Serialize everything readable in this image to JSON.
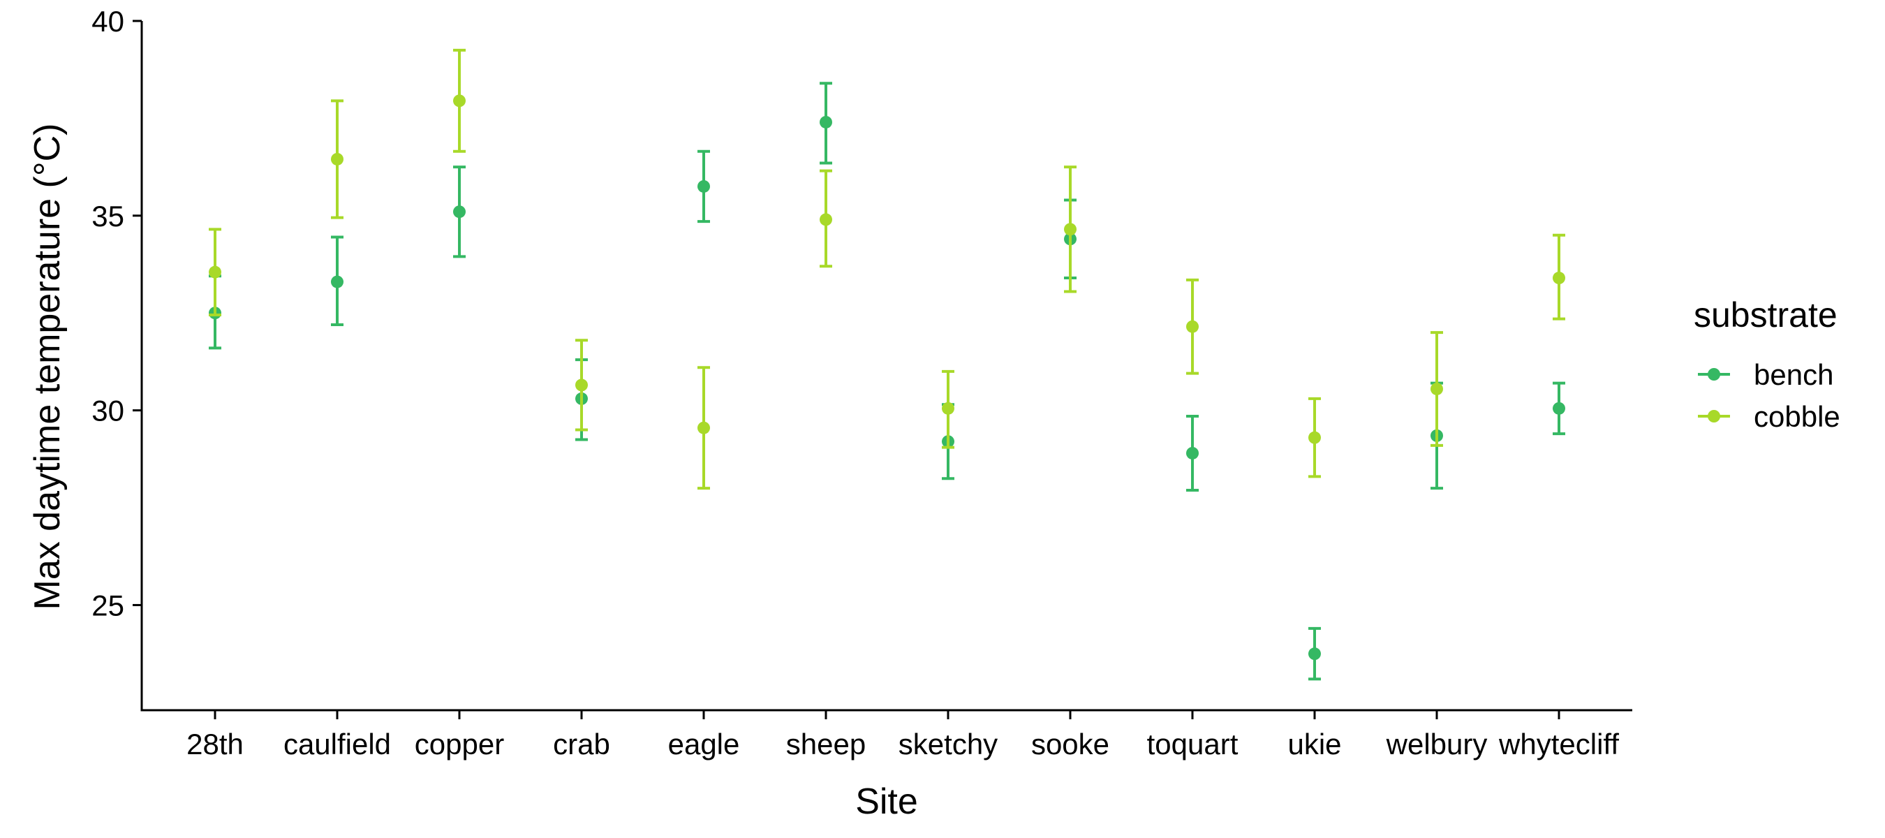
{
  "chart_data": {
    "type": "scatter",
    "xlabel": "Site",
    "ylabel": "Max daytime temperature (°C)",
    "categories": [
      "28th",
      "caulfield",
      "copper",
      "crab",
      "eagle",
      "sheep",
      "sketchy",
      "sooke",
      "toquart",
      "ukie",
      "welbury",
      "whytecliff"
    ],
    "ylim": [
      22.3,
      40
    ],
    "yticks": [
      25,
      30,
      35,
      40
    ],
    "grid": false,
    "legend_title": "substrate",
    "legend_position": "right",
    "error_bars": true,
    "series": [
      {
        "name": "bench",
        "color": "#35b863",
        "values": [
          32.5,
          33.3,
          35.1,
          30.3,
          35.75,
          37.4,
          29.2,
          34.4,
          28.9,
          23.75,
          29.35,
          30.05
        ],
        "lower": [
          31.6,
          32.2,
          33.95,
          29.25,
          34.85,
          36.35,
          28.25,
          33.4,
          27.95,
          23.1,
          28.0,
          29.4
        ],
        "upper": [
          33.45,
          34.45,
          36.25,
          31.3,
          36.65,
          38.4,
          30.15,
          35.4,
          29.85,
          24.4,
          30.7,
          30.7
        ]
      },
      {
        "name": "cobble",
        "color": "#a8d929",
        "values": [
          33.55,
          36.45,
          37.95,
          30.65,
          29.55,
          34.9,
          30.05,
          34.65,
          32.15,
          29.3,
          30.55,
          33.4
        ],
        "lower": [
          32.45,
          34.95,
          36.65,
          29.5,
          28.0,
          33.7,
          29.05,
          33.05,
          30.95,
          28.3,
          29.1,
          32.35
        ],
        "upper": [
          34.65,
          37.95,
          39.25,
          31.8,
          31.1,
          36.15,
          31.0,
          36.25,
          33.35,
          30.3,
          32.0,
          34.5
        ]
      }
    ]
  }
}
